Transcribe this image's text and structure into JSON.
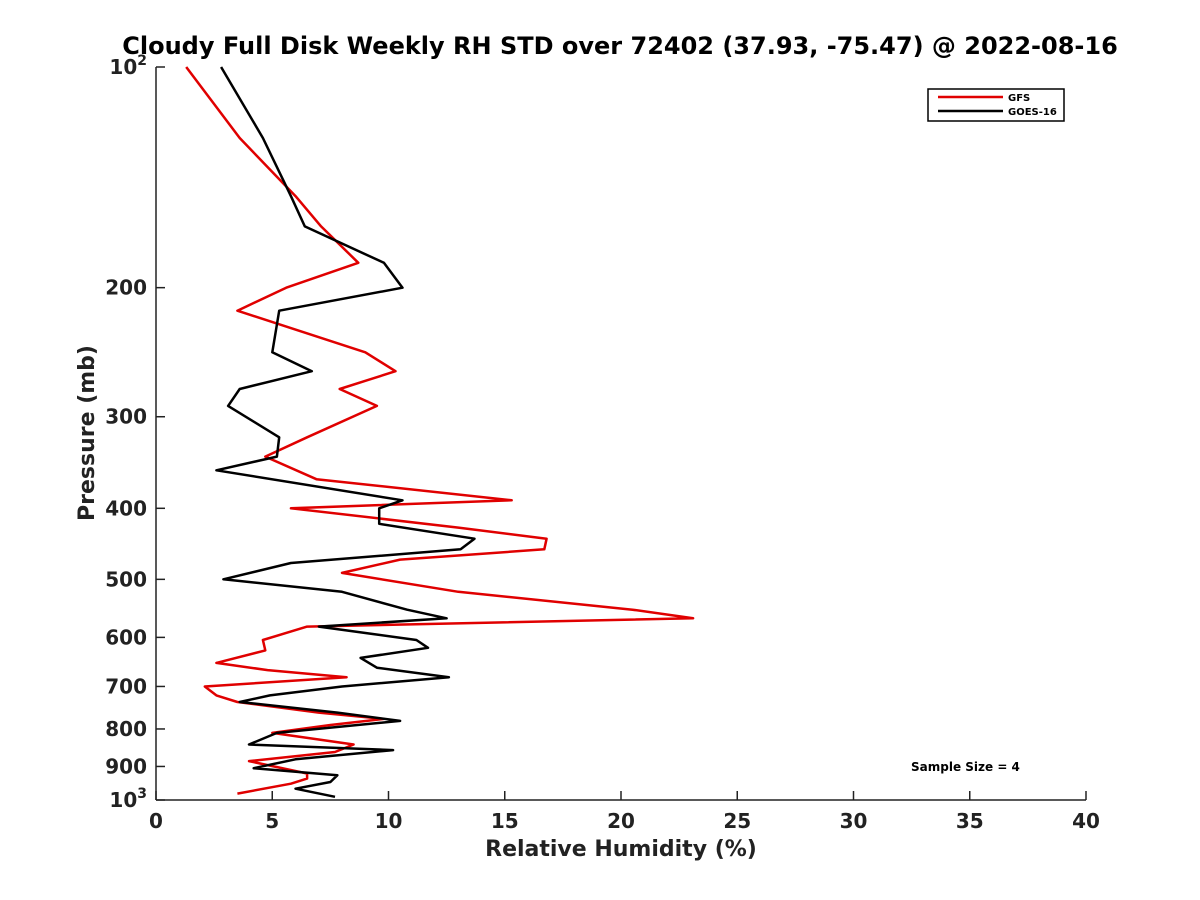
{
  "chart_data": {
    "type": "line",
    "title": "Cloudy Full Disk Weekly RH STD over 72402 (37.93, -75.47) @ 2022-08-16",
    "xlabel": "Relative Humidity (%)",
    "ylabel": "Pressure (mb)",
    "xlim": [
      0,
      40
    ],
    "ylim": [
      100,
      1000
    ],
    "y_scale": "log",
    "y_reversed": true,
    "grid": false,
    "legend_position": "top-right",
    "annotation": "Sample Size = 4",
    "x_ticks": [
      "0",
      "5",
      "10",
      "15",
      "20",
      "25",
      "30",
      "35",
      "40"
    ],
    "y_ticks": [
      {
        "value": 100,
        "base": "10",
        "exp": "2"
      },
      {
        "value": 200,
        "label": "200"
      },
      {
        "value": 300,
        "label": "300"
      },
      {
        "value": 400,
        "label": "400"
      },
      {
        "value": 500,
        "label": "500"
      },
      {
        "value": 600,
        "label": "600"
      },
      {
        "value": 700,
        "label": "700"
      },
      {
        "value": 800,
        "label": "800"
      },
      {
        "value": 900,
        "label": "900"
      },
      {
        "value": 1000,
        "base": "10",
        "exp": "3"
      }
    ],
    "series": [
      {
        "name": "GFS",
        "color": "#e00000",
        "points": [
          [
            1.3,
            100
          ],
          [
            3.6,
            125
          ],
          [
            6.0,
            150
          ],
          [
            7.1,
            165
          ],
          [
            8.7,
            185
          ],
          [
            5.6,
            200
          ],
          [
            3.5,
            215
          ],
          [
            9.0,
            245
          ],
          [
            10.3,
            260
          ],
          [
            7.9,
            275
          ],
          [
            9.5,
            290
          ],
          [
            6.5,
            320
          ],
          [
            4.7,
            340
          ],
          [
            6.9,
            365
          ],
          [
            15.3,
            390
          ],
          [
            5.8,
            400
          ],
          [
            13.0,
            425
          ],
          [
            16.8,
            440
          ],
          [
            16.7,
            455
          ],
          [
            10.5,
            470
          ],
          [
            8.0,
            490
          ],
          [
            13.0,
            520
          ],
          [
            20.5,
            550
          ],
          [
            23.1,
            565
          ],
          [
            6.5,
            580
          ],
          [
            4.6,
            605
          ],
          [
            4.7,
            625
          ],
          [
            2.6,
            650
          ],
          [
            4.8,
            665
          ],
          [
            8.2,
            680
          ],
          [
            2.1,
            700
          ],
          [
            2.6,
            720
          ],
          [
            3.5,
            735
          ],
          [
            7.0,
            760
          ],
          [
            9.8,
            775
          ],
          [
            7.5,
            790
          ],
          [
            5.0,
            810
          ],
          [
            8.5,
            840
          ],
          [
            7.7,
            860
          ],
          [
            4.0,
            885
          ],
          [
            6.5,
            920
          ],
          [
            6.5,
            935
          ],
          [
            5.8,
            950
          ],
          [
            3.5,
            980
          ]
        ]
      },
      {
        "name": "GOES-16",
        "color": "#000000",
        "points": [
          [
            2.8,
            100
          ],
          [
            4.6,
            125
          ],
          [
            5.8,
            150
          ],
          [
            6.4,
            165
          ],
          [
            9.8,
            185
          ],
          [
            10.6,
            200
          ],
          [
            5.3,
            215
          ],
          [
            5.0,
            245
          ],
          [
            6.7,
            260
          ],
          [
            3.6,
            275
          ],
          [
            3.1,
            290
          ],
          [
            5.3,
            320
          ],
          [
            5.2,
            340
          ],
          [
            2.6,
            355
          ],
          [
            10.6,
            390
          ],
          [
            9.6,
            400
          ],
          [
            9.6,
            420
          ],
          [
            13.7,
            440
          ],
          [
            13.1,
            455
          ],
          [
            5.8,
            475
          ],
          [
            2.9,
            500
          ],
          [
            8.0,
            520
          ],
          [
            10.8,
            550
          ],
          [
            12.5,
            565
          ],
          [
            7.0,
            580
          ],
          [
            11.2,
            605
          ],
          [
            11.7,
            620
          ],
          [
            8.8,
            640
          ],
          [
            9.5,
            660
          ],
          [
            12.6,
            680
          ],
          [
            8.0,
            700
          ],
          [
            4.9,
            720
          ],
          [
            3.6,
            735
          ],
          [
            7.8,
            760
          ],
          [
            10.5,
            780
          ],
          [
            5.2,
            810
          ],
          [
            4.0,
            840
          ],
          [
            10.2,
            855
          ],
          [
            6.0,
            880
          ],
          [
            4.2,
            905
          ],
          [
            7.8,
            925
          ],
          [
            7.5,
            945
          ],
          [
            6.0,
            965
          ],
          [
            7.7,
            990
          ]
        ]
      }
    ]
  }
}
